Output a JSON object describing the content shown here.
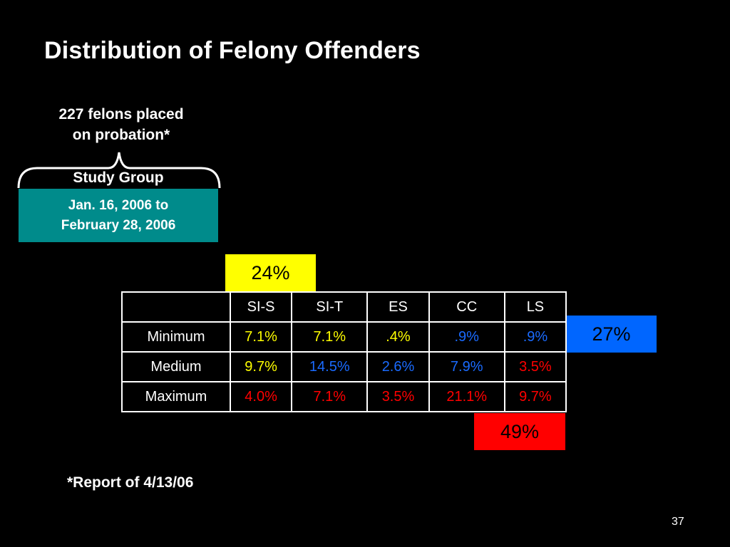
{
  "slide": {
    "title": "Distribution of Felony Offenders",
    "felons_line1": "227 felons placed",
    "felons_line2": "on probation*",
    "study_group_label": "Study Group",
    "dates_line1": "Jan. 16, 2006 to",
    "dates_line2": "February 28, 2006",
    "footnote": "*Report of 4/13/06",
    "page_number": "37"
  },
  "badges": {
    "yellow": "24%",
    "blue": "27%",
    "red": "49%"
  },
  "table": {
    "corner": "",
    "headers": [
      "SI-S",
      "SI-T",
      "ES",
      "CC",
      "LS"
    ],
    "rows": [
      {
        "label": "Minimum",
        "cells": [
          "7.1%",
          "7.1%",
          ".4%",
          ".9%",
          ".9%"
        ]
      },
      {
        "label": "Medium",
        "cells": [
          "9.7%",
          "14.5%",
          "2.6%",
          "7.9%",
          "3.5%"
        ]
      },
      {
        "label": "Maximum",
        "cells": [
          "4.0%",
          "7.1%",
          "3.5%",
          "21.1%",
          "9.7%"
        ]
      }
    ]
  },
  "colors": {
    "background": "#000000",
    "teal": "#008b8b",
    "yellow": "#ffff00",
    "blue": "#0066ff",
    "red": "#ff0000"
  }
}
